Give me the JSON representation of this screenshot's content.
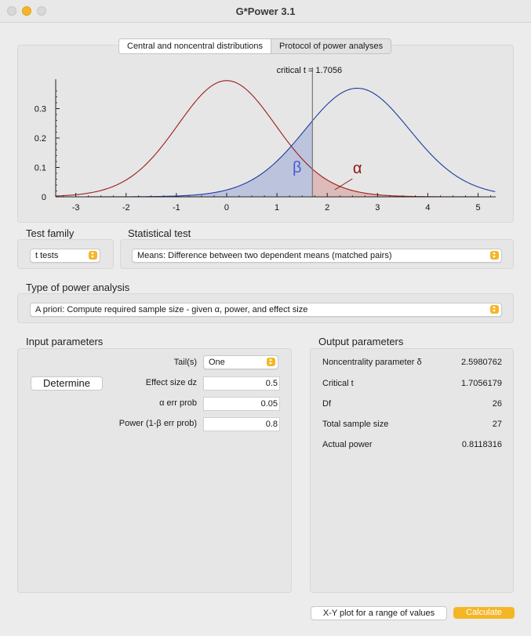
{
  "window": {
    "title": "G*Power 3.1"
  },
  "tabs": [
    {
      "label": "Central and noncentral distributions",
      "active": true
    },
    {
      "label": "Protocol of power analyses",
      "active": false
    }
  ],
  "graph": {
    "critical_label": "critical t = 1.7056",
    "alpha_symbol": "α",
    "beta_symbol": "β"
  },
  "chart_data": {
    "type": "line",
    "title": "",
    "x_ticks": [
      -3,
      -2,
      -1,
      0,
      1,
      2,
      3,
      4,
      5
    ],
    "y_ticks": [
      0,
      0.1,
      0.2,
      0.3
    ],
    "y_tick_labels": [
      "0",
      "0.1",
      "0.2",
      "0.3"
    ],
    "xlim": [
      -3.4,
      5.35
    ],
    "ylim": [
      0,
      0.4
    ],
    "critical_t": 1.7056,
    "df": 26,
    "noncentrality": 2.5980762,
    "series": [
      {
        "kind": "central",
        "color": "#9b1c1c"
      },
      {
        "kind": "noncentral",
        "color": "#1f3a9e"
      }
    ],
    "shading": {
      "beta_fill": "#b7c0dc",
      "alpha_fill": "#dbb6b2"
    }
  },
  "test_family": {
    "label": "Test family",
    "value": "t tests"
  },
  "statistical_test": {
    "label": "Statistical test",
    "value": "Means: Difference between two dependent means (matched pairs)"
  },
  "power_analysis": {
    "label": "Type of power analysis",
    "value": "A priori: Compute required sample size - given α, power, and effect size"
  },
  "input": {
    "label": "Input parameters",
    "determine_label": "Determine",
    "tails_label": "Tail(s)",
    "tails_value": "One",
    "effect_label": "Effect size dz",
    "effect_value": "0.5",
    "alpha_label": "α err prob",
    "alpha_value": "0.05",
    "power_label": "Power (1-β err prob)",
    "power_value": "0.8"
  },
  "output": {
    "label": "Output parameters",
    "rows": [
      {
        "label": "Noncentrality parameter δ",
        "value": "2.5980762"
      },
      {
        "label": "Critical t",
        "value": "1.7056179"
      },
      {
        "label": "Df",
        "value": "26"
      },
      {
        "label": "Total sample size",
        "value": "27"
      },
      {
        "label": "Actual power",
        "value": "0.8118316"
      }
    ]
  },
  "footer": {
    "xy_label": "X-Y plot for a range of values",
    "calculate_label": "Calculate"
  },
  "colors": {
    "accent": "#f5b626",
    "central": "#9b1c1c",
    "noncentral": "#1f3a9e"
  }
}
